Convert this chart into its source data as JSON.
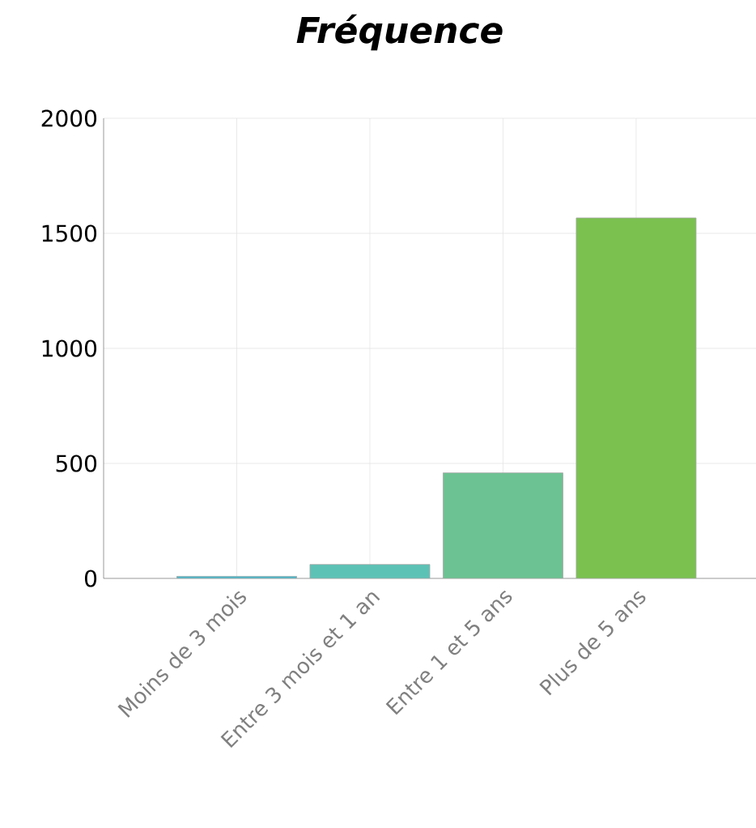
{
  "chart_data": {
    "type": "bar",
    "title": "Fréquence",
    "categories": [
      "Moins de 3 mois",
      "Entre 3 mois et 1 an",
      "Entre 1 et 5 ans",
      "Plus de 5 ans"
    ],
    "values": [
      10,
      61,
      459,
      1567
    ],
    "colors": [
      "#4fb6c6",
      "#5dc2b6",
      "#6cc292",
      "#7bc150"
    ],
    "ylim": [
      0,
      2000
    ],
    "yticks": [
      0,
      500,
      1000,
      1500,
      2000
    ],
    "grid": true
  }
}
